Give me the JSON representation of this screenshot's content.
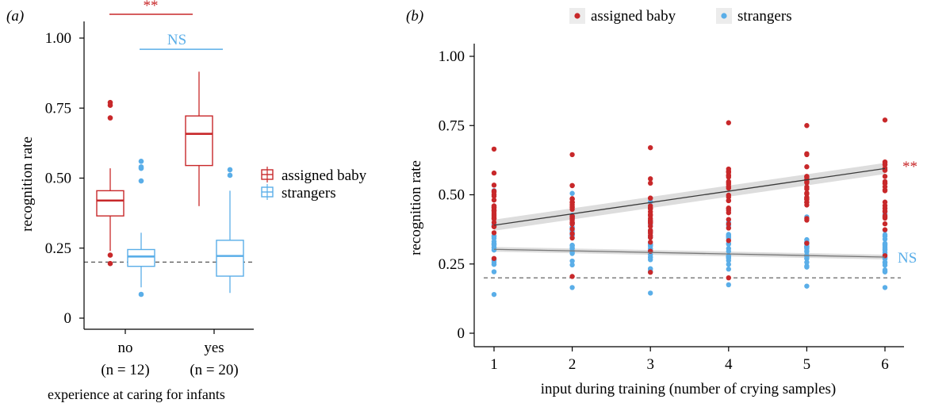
{
  "colors": {
    "assigned": "#c8282a",
    "strangers": "#5aaee8",
    "fit": "#555555",
    "band": "#cfcfcf"
  },
  "chart_data": [
    {
      "panel": "(a)",
      "type": "boxplot",
      "xlabel": "experience at caring for infants",
      "ylabel": "recognition rate",
      "ylim": [
        0,
        1
      ],
      "yticks": [
        "0",
        "0.25",
        "0.50",
        "0.75",
        "1.00"
      ],
      "categories": [
        {
          "label": "no",
          "sublabel": "(n = 12)"
        },
        {
          "label": "yes",
          "sublabel": "(n = 20)"
        }
      ],
      "legend": [
        "assigned baby",
        "strangers"
      ],
      "chance_level": 0.2,
      "series": [
        {
          "name": "assigned baby",
          "boxes": [
            {
              "q1": 0.365,
              "median": 0.42,
              "q3": 0.455,
              "low": 0.24,
              "high": 0.535,
              "outliers": [
                0.77,
                0.76,
                0.715,
                0.225,
                0.195
              ]
            },
            {
              "q1": 0.545,
              "median": 0.658,
              "q3": 0.722,
              "low": 0.4,
              "high": 0.88,
              "outliers": []
            }
          ]
        },
        {
          "name": "strangers",
          "boxes": [
            {
              "q1": 0.185,
              "median": 0.22,
              "q3": 0.245,
              "low": 0.11,
              "high": 0.305,
              "outliers": [
                0.56,
                0.54,
                0.535,
                0.49,
                0.085
              ]
            },
            {
              "q1": 0.15,
              "median": 0.222,
              "q3": 0.278,
              "low": 0.09,
              "high": 0.455,
              "outliers": [
                0.53,
                0.51
              ]
            }
          ]
        }
      ],
      "annotations": [
        {
          "text": "**",
          "color": "assigned",
          "y": 1.085,
          "from": 0,
          "to": 1
        },
        {
          "text": "NS",
          "color": "strangers",
          "y": 0.96,
          "from": 0,
          "to": 1
        }
      ]
    },
    {
      "panel": "(b)",
      "type": "scatter",
      "xlabel": "input during training (number of crying samples)",
      "ylabel": "recognition rate",
      "ylim": [
        0,
        1
      ],
      "yticks": [
        "0",
        "0.25",
        "0.50",
        "0.75",
        "1.00"
      ],
      "xticks": [
        "1",
        "2",
        "3",
        "4",
        "5",
        "6"
      ],
      "legend": [
        "assigned baby",
        "strangers"
      ],
      "chance_level": 0.2,
      "series": [
        {
          "name": "assigned baby",
          "x": [
            1,
            2,
            3,
            4,
            5,
            6
          ],
          "y_range": [
            [
              0.27,
              0.665
            ],
            [
              0.205,
              0.645
            ],
            [
              0.22,
              0.67
            ],
            [
              0.2,
              0.76
            ],
            [
              0.325,
              0.75
            ],
            [
              0.28,
              0.77
            ]
          ],
          "fit": {
            "y_at_1": 0.39,
            "y_at_6": 0.595
          },
          "annotation": "**"
        },
        {
          "name": "strangers",
          "x": [
            1,
            2,
            3,
            4,
            5,
            6
          ],
          "y_range": [
            [
              0.14,
              0.515
            ],
            [
              0.165,
              0.505
            ],
            [
              0.145,
              0.475
            ],
            [
              0.175,
              0.45
            ],
            [
              0.17,
              0.42
            ],
            [
              0.165,
              0.43
            ]
          ],
          "fit": {
            "y_at_1": 0.303,
            "y_at_6": 0.275
          },
          "annotation": "NS"
        }
      ]
    }
  ]
}
